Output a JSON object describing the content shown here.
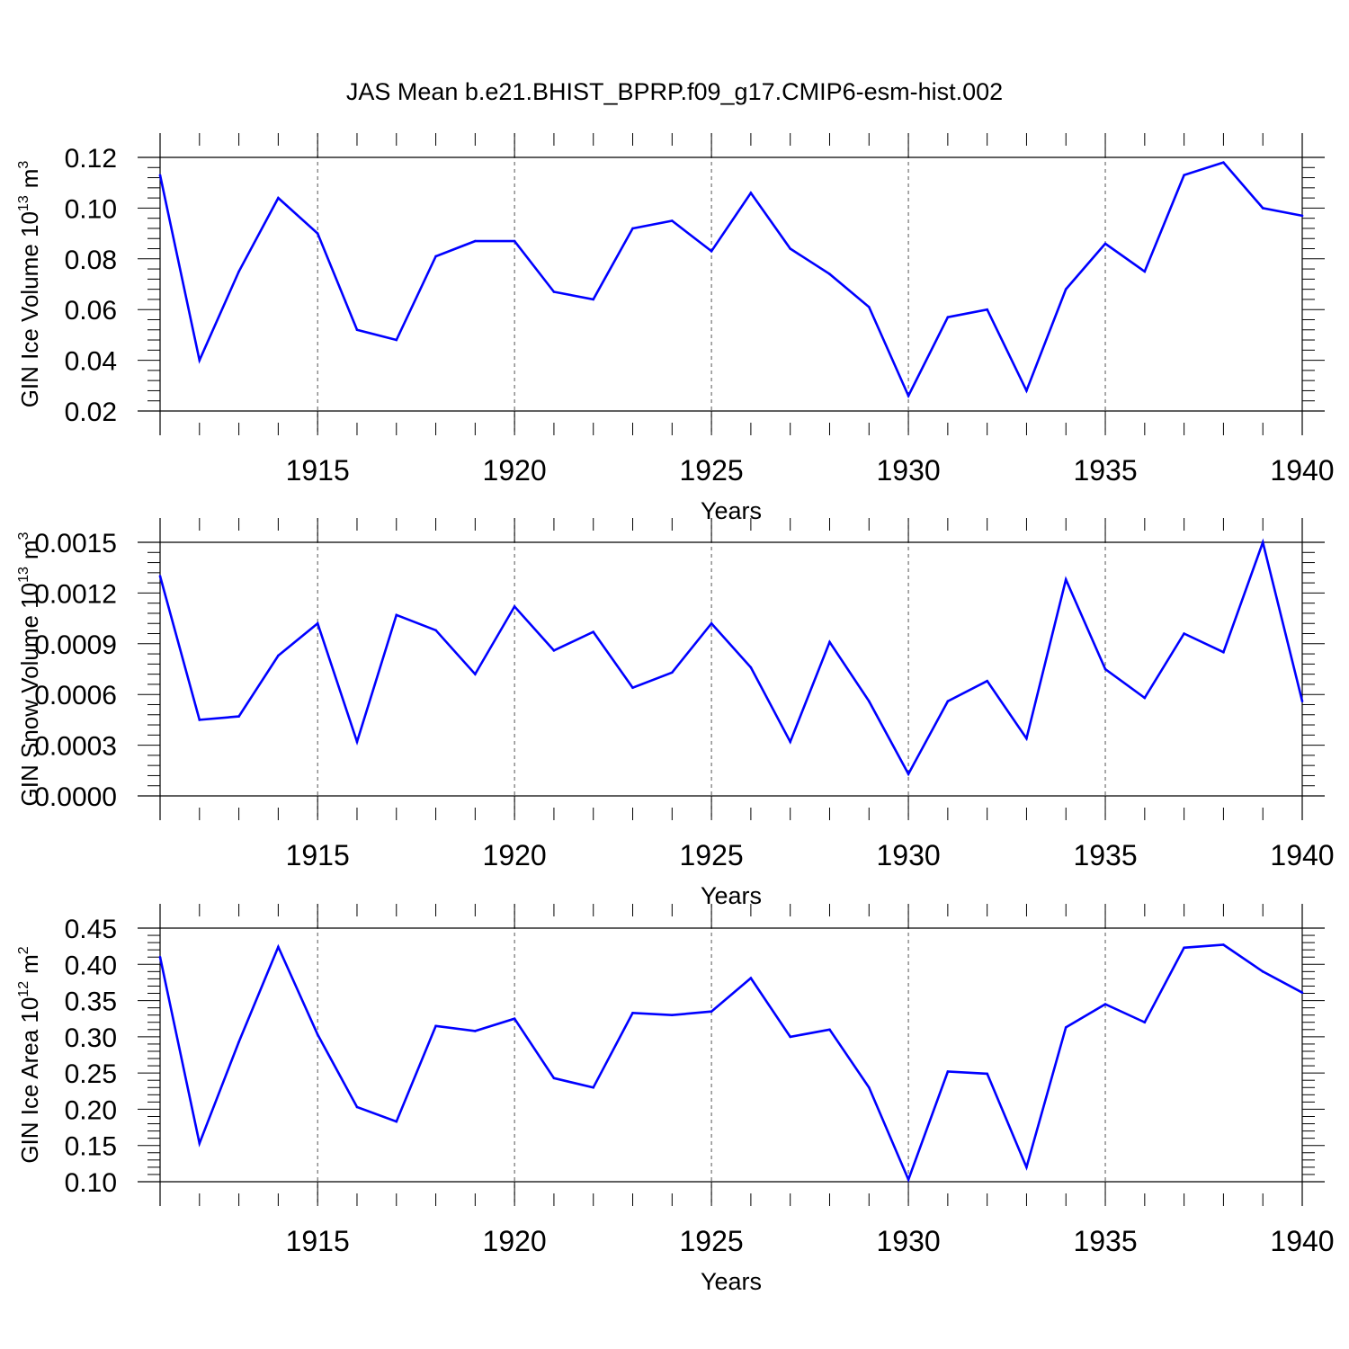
{
  "figure": {
    "title": "JAS Mean b.e21.BHIST_BPRP.f09_g17.CMIP6-esm-hist.002",
    "line_color": "#0000ff",
    "grid_style": "dashed vertical lines at major x ticks"
  },
  "chart_data": [
    {
      "type": "line",
      "ylabel": "GIN Ice Volume 10",
      "ylabel_exponent": "13",
      "ylabel_unit": "m",
      "ylabel_unit_exponent": "3",
      "xlabel": "Years",
      "xlim": [
        1911,
        1940
      ],
      "ylim": [
        0.02,
        0.12
      ],
      "x_ticks": [
        1915,
        1920,
        1925,
        1930,
        1935,
        1940
      ],
      "y_ticks": [
        0.02,
        0.04,
        0.06,
        0.08,
        0.1,
        0.12
      ],
      "y_tick_labels": [
        "0.02",
        "0.04",
        "0.06",
        "0.08",
        "0.10",
        "0.12"
      ],
      "grid": true,
      "x": [
        1911,
        1912,
        1913,
        1914,
        1915,
        1916,
        1917,
        1918,
        1919,
        1920,
        1921,
        1922,
        1923,
        1924,
        1925,
        1926,
        1927,
        1928,
        1929,
        1930,
        1931,
        1932,
        1933,
        1934,
        1935,
        1936,
        1937,
        1938,
        1939,
        1940
      ],
      "series": [
        {
          "values": [
            0.113,
            0.04,
            0.075,
            0.104,
            0.09,
            0.052,
            0.048,
            0.081,
            0.087,
            0.087,
            0.067,
            0.064,
            0.092,
            0.095,
            0.083,
            0.106,
            0.084,
            0.074,
            0.061,
            0.026,
            0.057,
            0.06,
            0.028,
            0.068,
            0.086,
            0.075,
            0.113,
            0.118,
            0.1,
            0.097
          ]
        }
      ]
    },
    {
      "type": "line",
      "ylabel": "GIN Snow Volume 10",
      "ylabel_exponent": "13",
      "ylabel_unit": "m",
      "ylabel_unit_exponent": "3",
      "xlabel": "Years",
      "xlim": [
        1911,
        1940
      ],
      "ylim": [
        0.0,
        0.0015
      ],
      "x_ticks": [
        1915,
        1920,
        1925,
        1930,
        1935,
        1940
      ],
      "y_ticks": [
        0.0,
        0.0003,
        0.0006,
        0.0009,
        0.0012,
        0.0015
      ],
      "y_tick_labels": [
        "0.0000",
        "0.0003",
        "0.0006",
        "0.0009",
        "0.0012",
        "0.0015"
      ],
      "grid": true,
      "x": [
        1911,
        1912,
        1913,
        1914,
        1915,
        1916,
        1917,
        1918,
        1919,
        1920,
        1921,
        1922,
        1923,
        1924,
        1925,
        1926,
        1927,
        1928,
        1929,
        1930,
        1931,
        1932,
        1933,
        1934,
        1935,
        1936,
        1937,
        1938,
        1939,
        1940
      ],
      "series": [
        {
          "values": [
            0.0013,
            0.00045,
            0.00047,
            0.00083,
            0.00102,
            0.00032,
            0.00107,
            0.00098,
            0.00072,
            0.00112,
            0.00086,
            0.00097,
            0.00064,
            0.00073,
            0.00102,
            0.00076,
            0.00032,
            0.00091,
            0.00056,
            0.00013,
            0.00056,
            0.00068,
            0.00034,
            0.00128,
            0.00075,
            0.00058,
            0.00096,
            0.00085,
            0.0015,
            0.00056
          ]
        }
      ]
    },
    {
      "type": "line",
      "ylabel": "GIN Ice Area 10",
      "ylabel_exponent": "12",
      "ylabel_unit": "m",
      "ylabel_unit_exponent": "2",
      "xlabel": "Years",
      "xlim": [
        1911,
        1940
      ],
      "ylim": [
        0.1,
        0.45
      ],
      "x_ticks": [
        1915,
        1920,
        1925,
        1930,
        1935,
        1940
      ],
      "y_ticks": [
        0.1,
        0.15,
        0.2,
        0.25,
        0.3,
        0.35,
        0.4,
        0.45
      ],
      "y_tick_labels": [
        "0.10",
        "0.15",
        "0.20",
        "0.25",
        "0.30",
        "0.35",
        "0.40",
        "0.45"
      ],
      "grid": true,
      "x": [
        1911,
        1912,
        1913,
        1914,
        1915,
        1916,
        1917,
        1918,
        1919,
        1920,
        1921,
        1922,
        1923,
        1924,
        1925,
        1926,
        1927,
        1928,
        1929,
        1930,
        1931,
        1932,
        1933,
        1934,
        1935,
        1936,
        1937,
        1938,
        1939,
        1940
      ],
      "series": [
        {
          "values": [
            0.41,
            0.153,
            0.293,
            0.424,
            0.303,
            0.203,
            0.183,
            0.315,
            0.308,
            0.325,
            0.243,
            0.23,
            0.333,
            0.33,
            0.335,
            0.381,
            0.3,
            0.31,
            0.23,
            0.103,
            0.252,
            0.249,
            0.12,
            0.313,
            0.345,
            0.32,
            0.423,
            0.427,
            0.39,
            0.361
          ]
        }
      ]
    }
  ]
}
